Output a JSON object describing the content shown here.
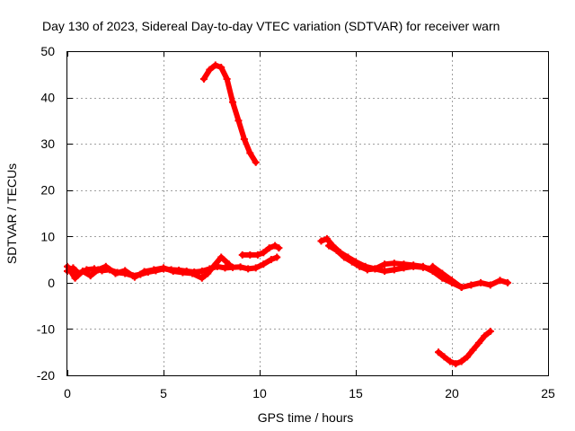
{
  "chart_data": {
    "type": "line",
    "title": "Day 130 of 2023, Sidereal Day-to-day VTEC variation (SDTVAR) for receiver warn",
    "xlabel": "GPS time / hours",
    "ylabel": "SDTVAR / TECUs",
    "xlim": [
      0,
      25
    ],
    "ylim": [
      -20,
      50
    ],
    "xticks": [
      0,
      5,
      10,
      15,
      20,
      25
    ],
    "yticks": [
      -20,
      -10,
      0,
      10,
      20,
      30,
      40,
      50
    ],
    "grid": true,
    "color": "#ff0000",
    "series": [
      {
        "name": "track-1",
        "x": [
          0.0,
          0.3,
          0.6,
          1.0,
          1.4,
          1.8,
          2.2,
          2.6,
          3.0,
          3.4,
          3.8,
          4.2,
          4.6,
          5.0,
          5.4,
          5.8,
          6.2,
          6.6,
          7.0,
          7.4,
          7.8,
          8.2,
          8.6,
          9.0,
          9.4,
          9.8,
          10.2,
          10.6,
          10.9
        ],
        "y": [
          2.5,
          3.2,
          2.0,
          2.8,
          3.0,
          2.6,
          2.8,
          2.2,
          2.0,
          1.5,
          1.8,
          2.3,
          2.6,
          3.0,
          2.8,
          2.7,
          2.5,
          2.3,
          2.5,
          3.0,
          3.5,
          3.2,
          3.3,
          3.4,
          3.0,
          3.2,
          4.0,
          5.0,
          5.5
        ]
      },
      {
        "name": "track-2",
        "x": [
          0.0,
          0.4,
          0.8,
          1.2,
          1.6,
          2.0,
          2.5,
          3.0,
          3.5,
          4.0,
          4.5,
          5.0,
          5.5,
          6.0,
          6.5,
          7.0,
          7.3,
          7.6,
          8.0,
          8.4
        ],
        "y": [
          3.5,
          1.0,
          2.5,
          1.5,
          2.8,
          3.5,
          2.0,
          2.6,
          1.2,
          2.4,
          2.8,
          3.2,
          2.5,
          2.2,
          2.0,
          1.0,
          2.0,
          3.5,
          5.5,
          4.0
        ]
      },
      {
        "name": "track-3",
        "x": [
          7.1,
          7.4,
          7.7,
          8.0,
          8.3,
          8.6,
          8.9,
          9.2,
          9.5,
          9.8
        ],
        "y": [
          44,
          46,
          47,
          46.5,
          44,
          39,
          35,
          31,
          28,
          26
        ]
      },
      {
        "name": "track-4",
        "x": [
          9.1,
          9.5,
          9.9,
          10.2,
          10.5,
          10.8,
          11.0
        ],
        "y": [
          6.0,
          6.0,
          6.0,
          6.5,
          7.5,
          8.0,
          7.5
        ]
      },
      {
        "name": "track-5",
        "x": [
          13.2,
          13.5,
          13.8,
          14.2,
          14.6,
          15.0,
          15.5,
          16.0,
          16.5,
          17.0,
          17.5,
          18.0,
          18.5,
          19.0
        ],
        "y": [
          9.0,
          9.5,
          8.0,
          6.5,
          5.5,
          4.5,
          3.5,
          3.0,
          2.5,
          2.8,
          3.2,
          3.5,
          3.3,
          3.0
        ]
      },
      {
        "name": "track-6",
        "x": [
          13.6,
          14.0,
          14.4,
          14.8,
          15.2,
          15.6,
          16.0,
          16.5,
          17.0,
          17.5,
          18.0,
          18.5,
          19.0,
          19.5,
          20.0,
          20.5
        ],
        "y": [
          8.0,
          7.0,
          5.5,
          4.5,
          3.5,
          2.8,
          3.0,
          4.0,
          4.2,
          4.0,
          3.8,
          3.5,
          2.5,
          1.0,
          0.0,
          -1.0
        ]
      },
      {
        "name": "track-7",
        "x": [
          19.0,
          19.5,
          20.0,
          20.5,
          21.0,
          21.5,
          22.0,
          22.5,
          22.9
        ],
        "y": [
          3.5,
          2.0,
          0.5,
          -1.0,
          -0.5,
          0.0,
          -0.5,
          0.5,
          0.0
        ]
      },
      {
        "name": "track-8",
        "x": [
          19.3,
          19.6,
          19.9,
          20.2,
          20.5,
          20.8,
          21.1,
          21.4,
          21.7,
          22.0
        ],
        "y": [
          -15,
          -16,
          -17,
          -17.5,
          -17,
          -16,
          -14.5,
          -13,
          -11.5,
          -10.5
        ]
      }
    ]
  }
}
